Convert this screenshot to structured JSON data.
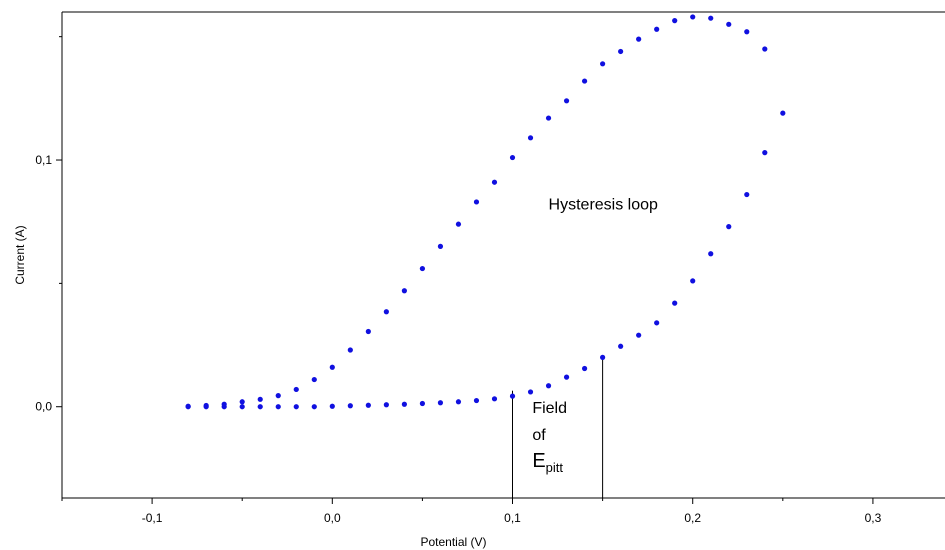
{
  "chart_data": {
    "type": "scatter",
    "title": "",
    "xlabel": "Potential (V)",
    "ylabel": "Current (A)",
    "xlim": [
      -0.15,
      0.34
    ],
    "ylim": [
      -0.037,
      0.16
    ],
    "x_ticks": [
      {
        "value": -0.1,
        "label": "-0,1"
      },
      {
        "value": 0.0,
        "label": "0,0"
      },
      {
        "value": 0.1,
        "label": "0,1"
      },
      {
        "value": 0.2,
        "label": "0,2"
      },
      {
        "value": 0.3,
        "label": "0,3"
      }
    ],
    "x_minor_ticks": [
      -0.15,
      -0.05,
      0.05,
      0.15,
      0.25
    ],
    "y_ticks": [
      {
        "value": 0.0,
        "label": "0,0"
      },
      {
        "value": 0.1,
        "label": "0,1"
      }
    ],
    "y_minor_ticks": [
      0.05,
      0.15
    ],
    "grid": false,
    "marker_color": "#1010e0",
    "series": [
      {
        "name": "",
        "x": [
          -0.08,
          -0.07,
          -0.06,
          -0.05,
          -0.04,
          -0.03,
          -0.02,
          -0.01,
          0.0,
          0.01,
          0.02,
          0.03,
          0.04,
          0.05,
          0.06,
          0.07,
          0.08,
          0.09,
          0.1,
          0.11,
          0.12,
          0.13,
          0.14,
          0.15,
          0.16,
          0.17,
          0.18,
          0.19,
          0.2,
          0.21,
          0.22,
          0.23,
          0.24,
          0.25,
          0.24,
          0.23,
          0.22,
          0.21,
          0.2,
          0.19,
          0.18,
          0.17,
          0.16,
          0.15,
          0.14,
          0.13,
          0.12,
          0.11,
          0.1,
          0.09,
          0.08,
          0.07,
          0.06,
          0.05,
          0.04,
          0.03,
          0.02,
          0.01,
          0.0,
          -0.01,
          -0.02,
          -0.03,
          -0.04,
          -0.05,
          -0.06,
          -0.07,
          -0.08
        ],
        "y": [
          0.0,
          0.0,
          0.0,
          0.0,
          0.0,
          0.0,
          0.0,
          0.0,
          0.0002,
          0.0004,
          0.0006,
          0.0008,
          0.001,
          0.0013,
          0.0016,
          0.002,
          0.0025,
          0.0032,
          0.0043,
          0.006,
          0.0085,
          0.012,
          0.0155,
          0.02,
          0.0245,
          0.029,
          0.034,
          0.042,
          0.051,
          0.062,
          0.073,
          0.086,
          0.103,
          0.119,
          0.145,
          0.152,
          0.155,
          0.1575,
          0.158,
          0.1565,
          0.153,
          0.149,
          0.144,
          0.139,
          0.132,
          0.124,
          0.117,
          0.109,
          0.101,
          0.091,
          0.083,
          0.074,
          0.065,
          0.056,
          0.047,
          0.0385,
          0.0305,
          0.023,
          0.016,
          0.011,
          0.007,
          0.0045,
          0.003,
          0.002,
          0.001,
          0.0005,
          0.0002
        ]
      }
    ],
    "annotations": [
      {
        "text": "Hysteresis loop",
        "x": 0.12,
        "y": 0.08
      },
      {
        "text": "Field",
        "x": 0.111,
        "y": -0.0025
      },
      {
        "text": "of",
        "x": 0.111,
        "y": -0.0135
      },
      {
        "text": "E",
        "text_sub": "pitt",
        "x": 0.111,
        "y": -0.0245
      }
    ],
    "vertical_lines": [
      {
        "x": 0.1,
        "y_top": 0.0065
      },
      {
        "x": 0.15,
        "y_top": 0.02
      }
    ]
  }
}
